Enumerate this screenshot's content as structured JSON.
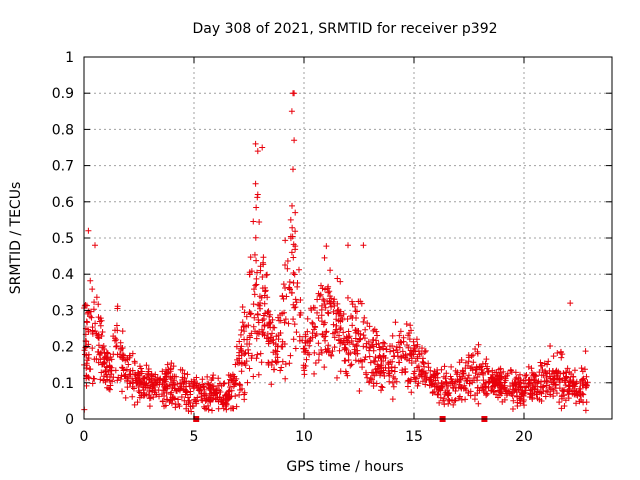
{
  "chart_data": {
    "type": "scatter",
    "title": "Day 308 of 2021, SRMTID for receiver p392",
    "xlabel": "GPS time / hours",
    "ylabel": "SRMTID / TECUs",
    "xlim": [
      0,
      24
    ],
    "ylim": [
      0,
      1
    ],
    "xticks": [
      0,
      5,
      10,
      15,
      20
    ],
    "xtick_labels": [
      "0",
      "5",
      "10",
      "15",
      "20"
    ],
    "yticks": [
      0,
      0.1,
      0.2,
      0.3,
      0.4,
      0.5,
      0.6,
      0.7,
      0.8,
      0.9,
      1
    ],
    "ytick_labels": [
      "0",
      "0.1",
      "0.2",
      "0.3",
      "0.4",
      "0.5",
      "0.6",
      "0.7",
      "0.8",
      "0.9",
      "1"
    ],
    "grid": true,
    "marker": "+",
    "color": "#e8000b",
    "x_coverage_hours": [
      0,
      22.9
    ],
    "envelope_hours": [
      0,
      0.25,
      0.5,
      0.75,
      1,
      1.25,
      1.5,
      1.75,
      2,
      2.5,
      3,
      3.5,
      4,
      4.5,
      5,
      5.5,
      6,
      6.5,
      7,
      7.25,
      7.5,
      7.75,
      8,
      8.25,
      8.5,
      8.75,
      9,
      9.25,
      9.5,
      9.75,
      10,
      10.5,
      11,
      11.5,
      12,
      12.5,
      13,
      13.5,
      14,
      14.5,
      15,
      15.5,
      16,
      16.5,
      17,
      17.5,
      18,
      18.5,
      19,
      19.5,
      20,
      20.5,
      21,
      21.5,
      22,
      22.5,
      22.9
    ],
    "envelope_mean": [
      0.2,
      0.24,
      0.22,
      0.19,
      0.15,
      0.13,
      0.22,
      0.16,
      0.12,
      0.1,
      0.09,
      0.08,
      0.09,
      0.08,
      0.07,
      0.08,
      0.07,
      0.06,
      0.12,
      0.18,
      0.26,
      0.32,
      0.36,
      0.3,
      0.22,
      0.17,
      0.28,
      0.34,
      0.36,
      0.3,
      0.18,
      0.24,
      0.28,
      0.26,
      0.25,
      0.22,
      0.18,
      0.15,
      0.16,
      0.18,
      0.16,
      0.13,
      0.1,
      0.08,
      0.1,
      0.12,
      0.12,
      0.11,
      0.1,
      0.09,
      0.08,
      0.09,
      0.11,
      0.12,
      0.1,
      0.07,
      0.12
    ],
    "envelope_spread": [
      0.08,
      0.12,
      0.1,
      0.06,
      0.04,
      0.04,
      0.08,
      0.05,
      0.04,
      0.04,
      0.03,
      0.03,
      0.04,
      0.04,
      0.03,
      0.03,
      0.03,
      0.02,
      0.05,
      0.08,
      0.12,
      0.14,
      0.16,
      0.1,
      0.07,
      0.05,
      0.09,
      0.12,
      0.14,
      0.1,
      0.05,
      0.08,
      0.09,
      0.08,
      0.08,
      0.07,
      0.06,
      0.04,
      0.05,
      0.06,
      0.05,
      0.04,
      0.03,
      0.03,
      0.03,
      0.04,
      0.04,
      0.03,
      0.03,
      0.03,
      0.03,
      0.03,
      0.04,
      0.05,
      0.04,
      0.02,
      0.05
    ],
    "highlighted_points": [
      {
        "x": 0.2,
        "y": 0.52
      },
      {
        "x": 0.5,
        "y": 0.48
      },
      {
        "x": 7.8,
        "y": 0.76
      },
      {
        "x": 7.9,
        "y": 0.74
      },
      {
        "x": 8.1,
        "y": 0.75
      },
      {
        "x": 7.8,
        "y": 0.65
      },
      {
        "x": 7.9,
        "y": 0.62
      },
      {
        "x": 9.5,
        "y": 0.9
      },
      {
        "x": 9.55,
        "y": 0.9
      },
      {
        "x": 9.45,
        "y": 0.85
      },
      {
        "x": 9.55,
        "y": 0.77
      },
      {
        "x": 9.5,
        "y": 0.69
      },
      {
        "x": 9.6,
        "y": 0.57
      },
      {
        "x": 9.4,
        "y": 0.55
      },
      {
        "x": 12.0,
        "y": 0.48
      },
      {
        "x": 12.7,
        "y": 0.48
      },
      {
        "x": 22.1,
        "y": 0.32
      }
    ],
    "zero_markers_hours": [
      5.1,
      16.3,
      18.2
    ]
  }
}
